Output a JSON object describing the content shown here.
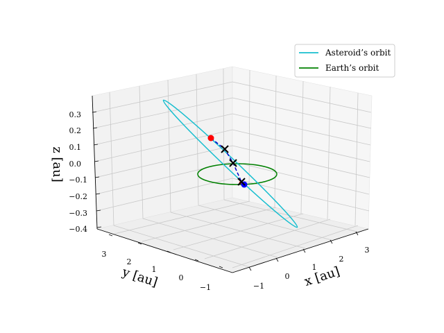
{
  "chart_data": {
    "type": "3d-line",
    "axes": {
      "x": {
        "label": "x [au]",
        "ticks": [
          "−1",
          "0",
          "1",
          "2",
          "3"
        ]
      },
      "y": {
        "label": "y [au]",
        "ticks": [
          "−1",
          "0",
          "1",
          "2",
          "3"
        ]
      },
      "z": {
        "label": "z [au]",
        "ticks": [
          "−0.4",
          "−0.3",
          "−0.2",
          "−0.1",
          "0.0",
          "0.1",
          "0.2",
          "0.3"
        ]
      }
    },
    "legend": {
      "placement": "top-right",
      "entries": [
        {
          "label": "Asteroid’s orbit",
          "color": "#17becf"
        },
        {
          "label": "Earth’s orbit",
          "color": "#008000"
        }
      ]
    },
    "series": [
      {
        "label": "Asteroid’s orbit",
        "color": "#17becf"
      },
      {
        "label": "Earth’s orbit",
        "color": "#008000"
      }
    ],
    "markers": [
      {
        "kind": "start-point",
        "color": "#ff0000"
      },
      {
        "kind": "end-point",
        "color": "#0000ff"
      },
      {
        "kind": "x-marker",
        "count": 3,
        "color": "#000000"
      }
    ],
    "trajectory": {
      "style": "dashed",
      "color": "#0000cc"
    },
    "grid": true
  }
}
